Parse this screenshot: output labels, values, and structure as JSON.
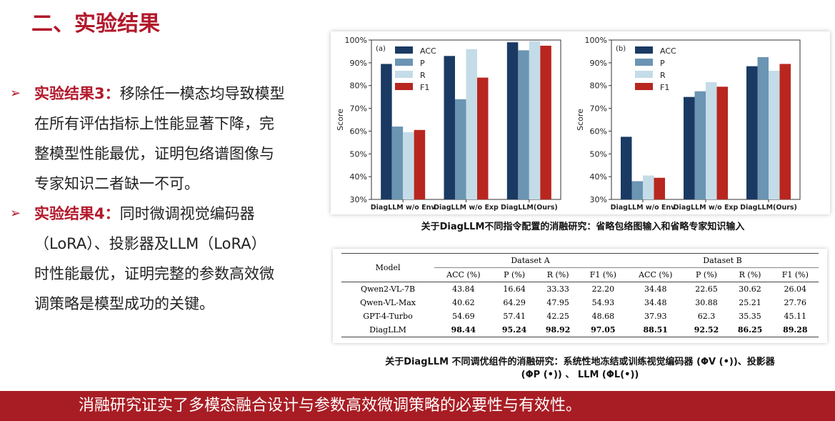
{
  "page": {
    "title": "二、实验结果",
    "bullets": [
      {
        "label": "实验结果3：",
        "text": "移除任一模态均导致模型在所有评估指标上性能显著下降，完整模型性能最优，证明包络谱图像与专家知识二者缺一不可。",
        "lines": [
          "移除任一模态均导致模型",
          "在所有评估指标上性能显著下降，完",
          "整模型性能最优，证明包络谱图像与",
          "专家知识二者缺一不可。"
        ]
      },
      {
        "label": "实验结果4：",
        "text": "同时微调视觉编码器（LoRA）、投影器及LLM（LoRA）时性能最优，证明完整的参数高效微调策略是模型成功的关键。",
        "lines": [
          "同时微调视觉编码器",
          "（LoRA）、投影器及LLM（LoRA）",
          "时性能最优，证明完整的参数高效微",
          "调策略是模型成功的关键。"
        ]
      }
    ],
    "caption_chart": "关于DiagLLM不同指令配置的消融研究：省略包络图输入和省略专家知识输入",
    "caption_table_line1": "关于DiagLLM 不同调优组件的消融研究：系统性地冻结或训练视觉编码器 (ΦV (•))、投影器",
    "caption_table_line2": "(ΦP (•)) 、 LLM (ΦL(•))",
    "banner": "消融研究证实了多模态融合设计与参数高效微调策略的必要性与有效性。"
  },
  "chart_data": [
    {
      "type": "bar",
      "panel_label": "(a)",
      "ylabel": "Score",
      "ylim": [
        30,
        100
      ],
      "yticks": [
        "30%",
        "40%",
        "50%",
        "60%",
        "70%",
        "80%",
        "90%",
        "100%"
      ],
      "categories": [
        "DiagLLM w/o Env",
        "DiagLLM w/o Exp",
        "DiagLLM(Ours)"
      ],
      "legend_position": "top-left",
      "series": [
        {
          "name": "ACC",
          "color": "#1a3a63",
          "values": [
            89.5,
            93,
            99
          ]
        },
        {
          "name": "P",
          "color": "#6b95b3",
          "values": [
            62,
            74,
            95.5
          ]
        },
        {
          "name": "R",
          "color": "#c4dce8",
          "values": [
            59.5,
            96,
            99.5
          ]
        },
        {
          "name": "F1",
          "color": "#b8261f",
          "values": [
            60.5,
            83.5,
            97.5
          ]
        }
      ]
    },
    {
      "type": "bar",
      "panel_label": "(b)",
      "ylabel": "Score",
      "ylim": [
        30,
        100
      ],
      "yticks": [
        "30%",
        "40%",
        "50%",
        "60%",
        "70%",
        "80%",
        "90%",
        "100%"
      ],
      "categories": [
        "DiagLLM w/o Env",
        "DiagLLM w/o Exp",
        "DiagLLM(Ours)"
      ],
      "legend_position": "top-left",
      "series": [
        {
          "name": "ACC",
          "color": "#1a3a63",
          "values": [
            57.5,
            75,
            88.5
          ]
        },
        {
          "name": "P",
          "color": "#6b95b3",
          "values": [
            38,
            77.5,
            92.5
          ]
        },
        {
          "name": "R",
          "color": "#c4dce8",
          "values": [
            40.5,
            81.5,
            86.5
          ]
        },
        {
          "name": "F1",
          "color": "#b8261f",
          "values": [
            39.5,
            79.5,
            89.5
          ]
        }
      ]
    }
  ],
  "table": {
    "model_header": "Model",
    "group_a": "Dataset A",
    "group_b": "Dataset B",
    "sub_headers": [
      "ACC (%)",
      "P (%)",
      "R (%)",
      "F1 (%)",
      "ACC (%)",
      "P (%)",
      "R (%)",
      "F1 (%)"
    ],
    "rows": [
      [
        "Qwen2-VL-7B",
        "43.84",
        "16.64",
        "33.33",
        "22.20",
        "34.48",
        "22.65",
        "30.62",
        "26.04"
      ],
      [
        "Qwen-VL-Max",
        "40.62",
        "64.29",
        "47.95",
        "54.93",
        "34.48",
        "30.88",
        "25.21",
        "27.76"
      ],
      [
        "GPT-4-Turbo",
        "54.69",
        "57.41",
        "42.25",
        "48.68",
        "37.93",
        "62.3",
        "35.35",
        "45.11"
      ],
      [
        "DiagLLM",
        "98.44",
        "95.24",
        "98.92",
        "97.05",
        "88.51",
        "92.52",
        "86.25",
        "89.28"
      ]
    ]
  }
}
